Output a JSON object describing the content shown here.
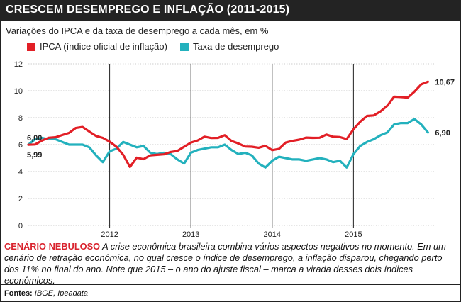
{
  "header": {
    "title": "CRESCEM DESEMPREGO E INFLAÇÃO (2011-2015)",
    "subtitle": "Variações do IPCA e da taxa de desemprego a cada mês, em %"
  },
  "legend": {
    "ipca_label": "IPCA (índice oficial de inflação)",
    "unemployment_label": "Taxa de desemprego"
  },
  "colors": {
    "ipca": "#e21f26",
    "unemployment": "#23b1bd",
    "accent": "#d9232e"
  },
  "caption": {
    "lead": "CENÁRIO NEBULOSO",
    "text": " A crise econômica brasileira combina vários aspectos negativos no momento. Em um cenário de retração econômica, no qual cresce o índice de desemprego, a inflação disparou, chegando perto dos 11% no final do ano. Note que 2015 – o ano do ajuste fiscal – marca a virada desses dois índices econômicos."
  },
  "source": {
    "label": "Fontes:",
    "value": " IBGE, Ipeadata"
  },
  "chart_data": {
    "type": "line",
    "title": "CRESCEM DESEMPREGO E INFLAÇÃO (2011-2015)",
    "ylim": [
      0,
      12
    ],
    "yticks": [
      0,
      2,
      4,
      6,
      8,
      10,
      12
    ],
    "x_tick_labels": [
      "2012",
      "2013",
      "2014",
      "2015"
    ],
    "x_start": "2011-01",
    "series": [
      {
        "name": "IPCA (índice oficial de inflação)",
        "start_label": "5,99",
        "end_label": "10,67",
        "values": [
          5.99,
          6.01,
          6.3,
          6.51,
          6.55,
          6.71,
          6.87,
          7.23,
          7.31,
          6.97,
          6.64,
          6.5,
          6.22,
          5.85,
          5.24,
          4.34,
          5.03,
          4.92,
          5.2,
          5.24,
          5.28,
          5.45,
          5.53,
          5.84,
          6.15,
          6.31,
          6.59,
          6.49,
          6.5,
          6.7,
          6.27,
          6.09,
          5.86,
          5.84,
          5.77,
          5.91,
          5.59,
          5.68,
          6.15,
          6.28,
          6.37,
          6.52,
          6.5,
          6.51,
          6.75,
          6.59,
          6.56,
          6.41,
          7.14,
          7.7,
          8.13,
          8.17,
          8.47,
          8.89,
          9.56,
          9.53,
          9.49,
          9.93,
          10.48,
          10.67
        ]
      },
      {
        "name": "Taxa de desemprego",
        "start_label": "6,00",
        "end_label": "6,90",
        "values": [
          6.0,
          6.4,
          6.5,
          6.4,
          6.4,
          6.2,
          6.0,
          6.0,
          6.0,
          5.8,
          5.2,
          4.7,
          5.5,
          5.7,
          6.2,
          6.0,
          5.8,
          5.9,
          5.4,
          5.3,
          5.4,
          5.3,
          4.9,
          4.6,
          5.4,
          5.6,
          5.7,
          5.8,
          5.8,
          6.0,
          5.6,
          5.3,
          5.4,
          5.2,
          4.6,
          4.3,
          4.8,
          5.1,
          5.0,
          4.9,
          4.9,
          4.8,
          4.9,
          5.0,
          4.9,
          4.7,
          4.8,
          4.3,
          5.3,
          5.9,
          6.2,
          6.4,
          6.7,
          6.9,
          7.5,
          7.6,
          7.6,
          7.9,
          7.5,
          6.9
        ]
      }
    ]
  }
}
